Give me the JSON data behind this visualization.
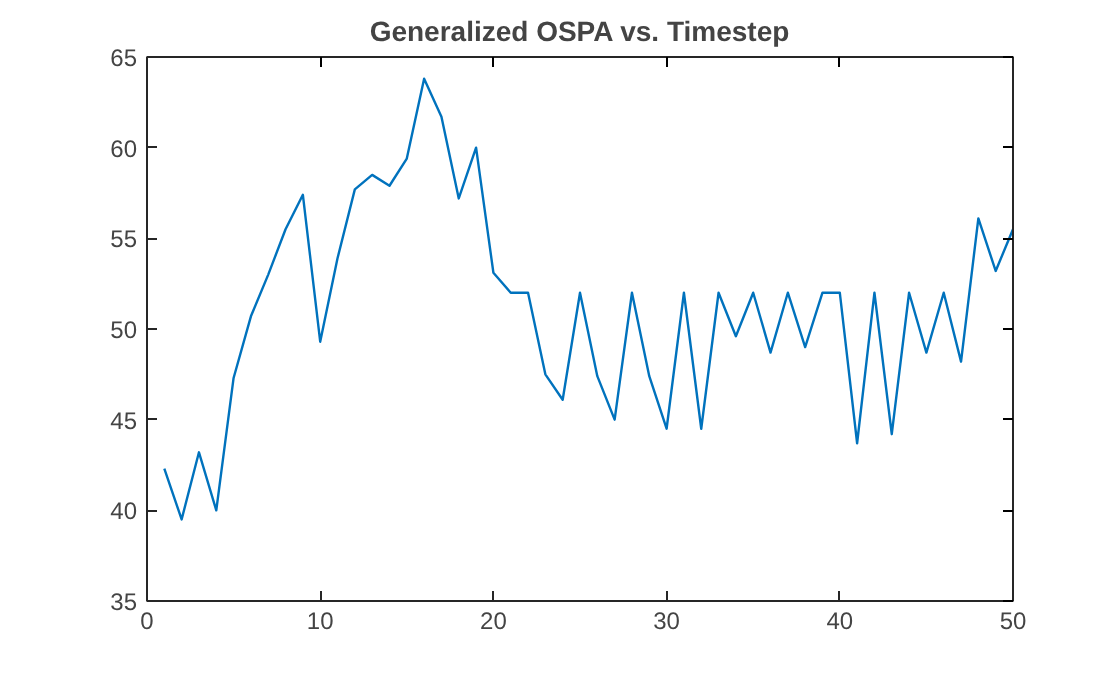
{
  "chart_data": {
    "type": "line",
    "title": "Generalized OSPA vs. Timestep",
    "x": [
      1,
      2,
      3,
      4,
      5,
      6,
      7,
      8,
      9,
      10,
      11,
      12,
      13,
      14,
      15,
      16,
      17,
      18,
      19,
      20,
      21,
      22,
      23,
      24,
      25,
      26,
      27,
      28,
      29,
      30,
      31,
      32,
      33,
      34,
      35,
      36,
      37,
      38,
      39,
      40,
      41,
      42,
      43,
      44,
      45,
      46,
      47,
      48,
      49,
      50
    ],
    "series": [
      {
        "color": "#0072bd",
        "values": [
          42.3,
          39.5,
          43.2,
          40,
          47.3,
          50.7,
          53,
          55.5,
          57.4,
          49.3,
          53.9,
          57.7,
          58.5,
          57.9,
          59.4,
          63.8,
          61.7,
          57.2,
          60,
          53.1,
          52,
          52,
          47.5,
          46.1,
          52,
          47.4,
          45,
          52,
          47.4,
          44.5,
          52,
          44.5,
          52,
          49.6,
          52,
          48.7,
          52,
          49,
          52,
          52,
          43.7,
          52,
          44.2,
          52,
          48.7,
          52,
          48.2,
          56.1,
          53.2,
          55.5
        ]
      }
    ],
    "xlim": [
      0,
      50
    ],
    "xticks": [
      0,
      10,
      20,
      30,
      40,
      50
    ],
    "ylim": [
      35,
      65
    ],
    "yticks": [
      35,
      40,
      45,
      50,
      55,
      60,
      65
    ],
    "grid": false
  }
}
